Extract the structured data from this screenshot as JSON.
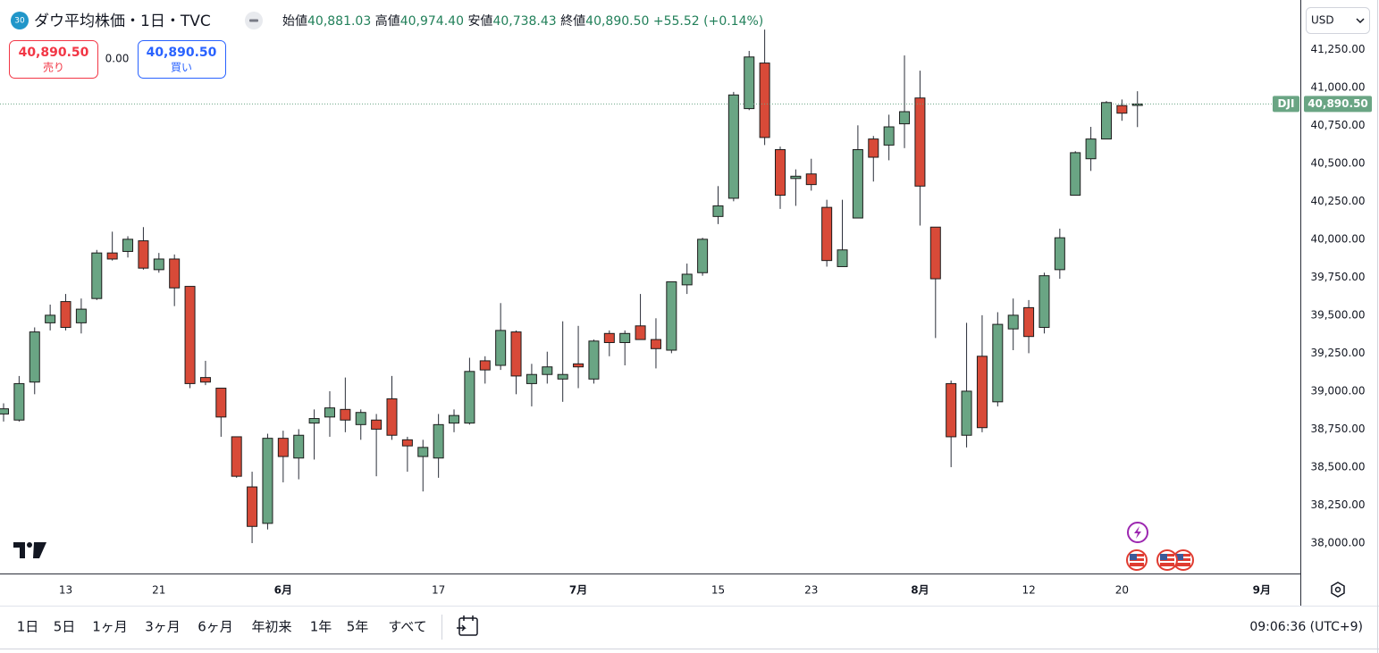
{
  "header": {
    "badge": "30",
    "title": "ダウ平均株価・1日・TVC",
    "ohlc": [
      {
        "label": "始値",
        "value": "40,881.03"
      },
      {
        "label": "高値",
        "value": "40,974.40"
      },
      {
        "label": "安値",
        "value": "40,738.43"
      },
      {
        "label": "終値",
        "value": "40,890.50"
      }
    ],
    "change": "+55.52 (+0.14%)"
  },
  "trade": {
    "sell_price": "40,890.50",
    "sell_label": "売り",
    "spread": "0.00",
    "buy_price": "40,890.50",
    "buy_label": "買い"
  },
  "currency": "USD",
  "toolbar": {
    "ranges": [
      "1日",
      "5日",
      "1ヶ月",
      "3ヶ月",
      "6ヶ月",
      "年初来",
      "1年",
      "5年",
      "すべて"
    ],
    "clock": "09:06:36 (UTC+9)"
  },
  "chart_data": {
    "type": "candlestick",
    "up_color": "#6aa584",
    "down_color": "#d84a38",
    "symbol": "DJI",
    "last_price": {
      "value": 40890.5,
      "label": "40,890.50"
    },
    "categories": [
      null,
      null,
      null,
      null,
      "13",
      null,
      null,
      null,
      null,
      null,
      "21",
      null,
      null,
      null,
      null,
      null,
      null,
      null,
      "6月",
      null,
      null,
      null,
      null,
      null,
      null,
      null,
      null,
      null,
      "17",
      null,
      null,
      null,
      null,
      null,
      null,
      null,
      null,
      "7月",
      null,
      null,
      null,
      null,
      null,
      null,
      null,
      null,
      "15",
      null,
      null,
      null,
      null,
      null,
      "23",
      null,
      null,
      null,
      null,
      null,
      null,
      "8月",
      null,
      null,
      null,
      null,
      null,
      null,
      "12",
      null,
      null,
      null,
      null,
      null,
      "20",
      null,
      null,
      null,
      null,
      null,
      null,
      null,
      null,
      "9月"
    ],
    "open": [
      38850,
      38810,
      39060,
      39450,
      39590,
      39450,
      39610,
      39910,
      39920,
      39990,
      39800,
      39870,
      39690,
      39090,
      39020,
      38700,
      38370,
      38130,
      38690,
      38560,
      38790,
      38830,
      38880,
      38780,
      38810,
      38950,
      38680,
      38570,
      38560,
      38790,
      38790,
      39200,
      39170,
      39390,
      39050,
      39110,
      39080,
      39180,
      39080,
      39380,
      39320,
      39430,
      39340,
      39270,
      39700,
      39780,
      40150,
      40270,
      40860,
      41160,
      40590,
      40400,
      40430,
      40210,
      39820,
      40140,
      40660,
      40620,
      40760,
      40930,
      40080,
      39050,
      38710,
      39230,
      38930,
      39410,
      39550,
      39420,
      39800,
      40290,
      40530,
      40660,
      40880,
      40881.03,
      null,
      null,
      null,
      null,
      null,
      null,
      null,
      null
    ],
    "high": [
      38920,
      39100,
      39420,
      39570,
      39640,
      39610,
      39930,
      40050,
      40020,
      40080,
      39910,
      39900,
      39690,
      39200,
      39020,
      38700,
      38470,
      38720,
      38740,
      38750,
      38880,
      39000,
      39090,
      38880,
      38850,
      39100,
      38700,
      38680,
      38850,
      38880,
      39220,
      39230,
      39580,
      39400,
      39180,
      39260,
      39460,
      39430,
      39340,
      39400,
      39400,
      39640,
      39480,
      39720,
      39840,
      40010,
      40350,
      40970,
      41240,
      41380,
      40610,
      40460,
      40530,
      40260,
      40260,
      40750,
      40680,
      40820,
      41210,
      41110,
      40080,
      39070,
      39450,
      39500,
      39520,
      39610,
      39600,
      39780,
      40070,
      40580,
      40740,
      40910,
      40920,
      40974.4,
      null,
      null,
      null,
      null,
      null,
      null,
      null,
      null
    ],
    "low": [
      38800,
      38800,
      38980,
      39400,
      39400,
      39380,
      39600,
      39860,
      39880,
      39800,
      39780,
      39560,
      39020,
      39040,
      38700,
      38430,
      38000,
      38090,
      38400,
      38420,
      38550,
      38700,
      38730,
      38680,
      38440,
      38680,
      38470,
      38340,
      38430,
      38730,
      38780,
      39050,
      39140,
      38980,
      38900,
      39050,
      38930,
      39020,
      39050,
      39230,
      39170,
      39340,
      39150,
      39250,
      39640,
      39760,
      40100,
      40250,
      40850,
      40620,
      40200,
      40220,
      40320,
      39820,
      39820,
      40140,
      40380,
      40520,
      40600,
      40090,
      39350,
      38500,
      38630,
      38730,
      38900,
      39270,
      39250,
      39380,
      39740,
      40290,
      40450,
      40660,
      40780,
      40738.43,
      null,
      null,
      null,
      null,
      null,
      null,
      null,
      null
    ],
    "close": [
      38884,
      39050,
      39390,
      39500,
      39420,
      39540,
      39910,
      39870,
      40000,
      39810,
      39870,
      39680,
      39050,
      39060,
      38830,
      38440,
      38110,
      38690,
      38570,
      38710,
      38820,
      38890,
      38810,
      38860,
      38750,
      38710,
      38640,
      38630,
      38780,
      38840,
      39130,
      39140,
      39400,
      39100,
      39110,
      39160,
      39110,
      39160,
      39330,
      39320,
      39380,
      39340,
      39280,
      39720,
      39770,
      40000,
      40220,
      40950,
      41200,
      40670,
      40290,
      40415,
      40360,
      39860,
      39930,
      40590,
      40540,
      40740,
      40840,
      40350,
      39740,
      38700,
      39000,
      38760,
      39440,
      39500,
      39360,
      39760,
      40010,
      40570,
      40660,
      40900,
      40830,
      40890.5,
      null,
      null,
      null,
      null,
      null,
      null,
      null,
      null
    ],
    "ylim": [
      37800,
      41575
    ],
    "yticks": [
      {
        "value": 38000,
        "label": "38,000.00"
      },
      {
        "value": 38250,
        "label": "38,250.00"
      },
      {
        "value": 38500,
        "label": "38,500.00"
      },
      {
        "value": 38750,
        "label": "38,750.00"
      },
      {
        "value": 39000,
        "label": "39,000.00"
      },
      {
        "value": 39250,
        "label": "39,250.00"
      },
      {
        "value": 39500,
        "label": "39,500.00"
      },
      {
        "value": 39750,
        "label": "39,750.00"
      },
      {
        "value": 40000,
        "label": "40,000.00"
      },
      {
        "value": 40250,
        "label": "40,250.00"
      },
      {
        "value": 40500,
        "label": "40,500.00"
      },
      {
        "value": 40750,
        "label": "40,750.00"
      },
      {
        "value": 41000,
        "label": "41,000.00"
      },
      {
        "value": 41250,
        "label": "41,250.00"
      }
    ],
    "grid": false
  }
}
